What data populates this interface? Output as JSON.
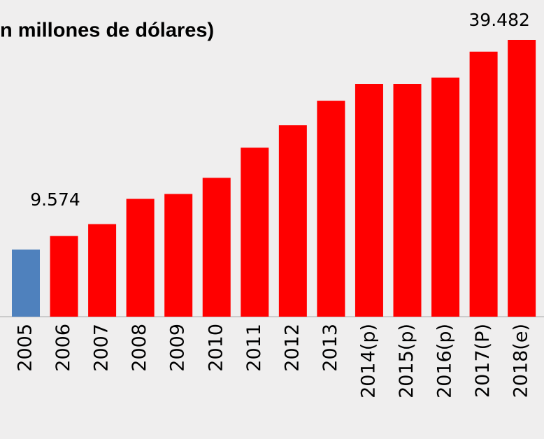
{
  "chart_data": {
    "type": "bar",
    "title": "n millones de dólares)",
    "categories": [
      "2005",
      "2006",
      "2007",
      "2008",
      "2009",
      "2010",
      "2011",
      "2012",
      "2013",
      "2014(p)",
      "2015(p)",
      "2016(p)",
      "2017(P)",
      "2018(e)"
    ],
    "values": [
      9574,
      11500,
      13200,
      16800,
      17500,
      19800,
      24100,
      27300,
      30800,
      33200,
      33200,
      34100,
      37800,
      39482
    ],
    "value_labels": [
      "9.574",
      null,
      null,
      null,
      null,
      null,
      null,
      null,
      null,
      null,
      null,
      null,
      null,
      "39.482"
    ],
    "colors": [
      "#4f81bd",
      "#ff0000",
      "#ff0000",
      "#ff0000",
      "#ff0000",
      "#ff0000",
      "#ff0000",
      "#ff0000",
      "#ff0000",
      "#ff0000",
      "#ff0000",
      "#ff0000",
      "#ff0000",
      "#ff0000"
    ]
  }
}
